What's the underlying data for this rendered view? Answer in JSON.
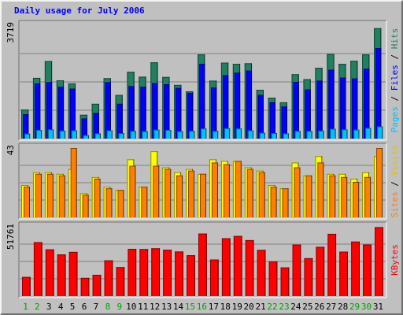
{
  "chart_data": {
    "type": "bar",
    "title": "Daily usage for July 2006",
    "categories": [
      "1",
      "2",
      "3",
      "4",
      "5",
      "6",
      "7",
      "8",
      "9",
      "10",
      "11",
      "12",
      "13",
      "14",
      "15",
      "16",
      "17",
      "18",
      "19",
      "20",
      "21",
      "22",
      "23",
      "24",
      "25",
      "26",
      "27",
      "28",
      "29",
      "30",
      "31"
    ],
    "weekend_days": [
      "1",
      "2",
      "8",
      "9",
      "15",
      "16",
      "22",
      "23",
      "29",
      "30"
    ],
    "panels": [
      {
        "id": "requests",
        "ymax_label": "3719",
        "ymax": 3719,
        "series": [
          {
            "name": "Hits",
            "color": "#208060",
            "values": [
              950,
              1990,
              2540,
              1910,
              1810,
              780,
              1140,
              1980,
              1430,
              2190,
              2030,
              2500,
              2020,
              1760,
              1550,
              2760,
              1900,
              2490,
              2450,
              2470,
              1600,
              1340,
              1190,
              2110,
              1950,
              2320,
              2770,
              2450,
              2550,
              2760,
              3620
            ]
          },
          {
            "name": "Files",
            "color": "#0000ff",
            "values": [
              800,
              1810,
              1850,
              1700,
              1640,
              660,
              840,
              1850,
              1140,
              1720,
              1700,
              1820,
              1780,
              1660,
              1500,
              2450,
              1670,
              2080,
              2160,
              2230,
              1430,
              1190,
              1050,
              1860,
              1610,
              1900,
              2260,
              2000,
              1970,
              2290,
              2970
            ]
          },
          {
            "name": "Pages",
            "color": "#00c0ff",
            "values": [
              160,
              280,
              300,
              260,
              270,
              110,
              170,
              270,
              180,
              250,
              240,
              290,
              280,
              240,
              250,
              330,
              250,
              340,
              330,
              270,
              190,
              180,
              170,
              250,
              250,
              260,
              320,
              300,
              290,
              350,
              400
            ]
          }
        ],
        "labels": [
          "Pages",
          "Files",
          "Hits"
        ]
      },
      {
        "id": "visits",
        "ymax_label": "43",
        "ymax": 43,
        "series": [
          {
            "name": "Visits",
            "color": "#ffff00",
            "values": [
              20,
              28,
              28,
              27,
              30,
              15,
              25,
              19,
              17,
              36,
              19,
              41,
              31,
              28,
              30,
              27,
              36,
              35,
              35,
              31,
              29,
              20,
              18,
              34,
              26,
              38,
              27,
              27,
              24,
              28,
              38
            ]
          },
          {
            "name": "Sites",
            "color": "#ff8000",
            "values": [
              19,
              27,
              27,
              26,
              43,
              14,
              24,
              18,
              17,
              32,
              19,
              32,
              30,
              26,
              29,
              27,
              34,
              33,
              35,
              30,
              28,
              19,
              18,
              31,
              26,
              34,
              26,
              25,
              22,
              25,
              43
            ]
          }
        ],
        "labels": [
          "Sites",
          "Visits"
        ]
      },
      {
        "id": "kbytes",
        "ymax_label": "51761",
        "ymax": 51761,
        "series": [
          {
            "name": "KBytes",
            "color": "#ff0000",
            "values": [
              14300,
              40300,
              34900,
              31100,
              33000,
              13600,
              15900,
              26700,
              21600,
              35300,
              35100,
              35700,
              34600,
              33300,
              30500,
              46700,
              27300,
              43200,
              44900,
              41800,
              34500,
              25800,
              21400,
              38400,
              28300,
              36800,
              46500,
              33200,
              40700,
              38500,
              51500
            ]
          }
        ],
        "labels": [
          "KBytes"
        ]
      }
    ],
    "colors": {
      "background": "#c0c0c0",
      "plot": "#c0c0c0",
      "title": "#0000ff",
      "weekday": "#000000",
      "weekend": "#00a000",
      "grid": "#808080"
    },
    "grid": true
  }
}
